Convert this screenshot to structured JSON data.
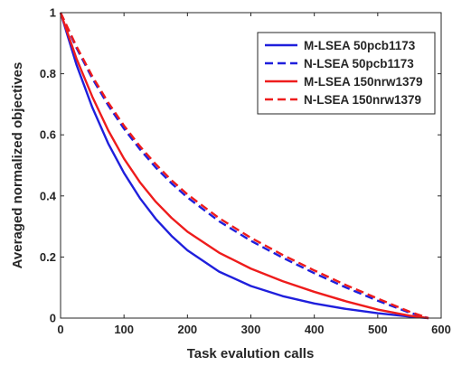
{
  "chart_data": {
    "type": "line",
    "title": "",
    "xlabel": "Task evalution calls",
    "ylabel": "Averaged normalized objectives",
    "xlim": [
      0,
      600
    ],
    "ylim": [
      0,
      1
    ],
    "xticks": [
      0,
      100,
      200,
      300,
      400,
      500,
      600
    ],
    "yticks": [
      0,
      0.2,
      0.4,
      0.6,
      0.8,
      1
    ],
    "xtick_labels": [
      "0",
      "100",
      "200",
      "300",
      "400",
      "500",
      "600"
    ],
    "ytick_labels": [
      "0",
      "0.2",
      "0.4",
      "0.6",
      "0.8",
      "1"
    ],
    "grid": false,
    "legend_position": "top-right",
    "series": [
      {
        "name": "M-LSEA 50pcb1173",
        "color": "#1f1fdc",
        "dash": "solid",
        "x": [
          0,
          25,
          50,
          75,
          100,
          125,
          150,
          175,
          200,
          250,
          300,
          350,
          400,
          450,
          500,
          550,
          580
        ],
        "y": [
          1.0,
          0.83,
          0.69,
          0.572,
          0.475,
          0.393,
          0.325,
          0.269,
          0.222,
          0.152,
          0.105,
          0.072,
          0.048,
          0.03,
          0.016,
          0.005,
          0.0
        ]
      },
      {
        "name": "N-LSEA 50pcb1173",
        "color": "#1f1fdc",
        "dash": "dashed",
        "x": [
          0,
          25,
          50,
          75,
          100,
          125,
          150,
          175,
          200,
          250,
          300,
          350,
          400,
          450,
          500,
          550,
          580
        ],
        "y": [
          1.0,
          0.885,
          0.785,
          0.697,
          0.62,
          0.553,
          0.493,
          0.441,
          0.395,
          0.317,
          0.253,
          0.198,
          0.147,
          0.1,
          0.057,
          0.018,
          0.0
        ]
      },
      {
        "name": "M-LSEA 150nrw1379",
        "color": "#ee1c1c",
        "dash": "solid",
        "x": [
          0,
          25,
          50,
          75,
          100,
          125,
          150,
          175,
          200,
          250,
          300,
          350,
          400,
          450,
          500,
          550,
          580
        ],
        "y": [
          1.0,
          0.85,
          0.725,
          0.615,
          0.522,
          0.445,
          0.381,
          0.328,
          0.283,
          0.214,
          0.162,
          0.121,
          0.086,
          0.055,
          0.028,
          0.008,
          0.0
        ]
      },
      {
        "name": "N-LSEA 150nrw1379",
        "color": "#ee1c1c",
        "dash": "dashed",
        "x": [
          0,
          25,
          50,
          75,
          100,
          125,
          150,
          175,
          200,
          250,
          300,
          350,
          400,
          450,
          500,
          550,
          580
        ],
        "y": [
          1.0,
          0.89,
          0.792,
          0.706,
          0.63,
          0.563,
          0.504,
          0.451,
          0.405,
          0.327,
          0.263,
          0.207,
          0.156,
          0.108,
          0.064,
          0.021,
          0.0
        ]
      }
    ]
  }
}
